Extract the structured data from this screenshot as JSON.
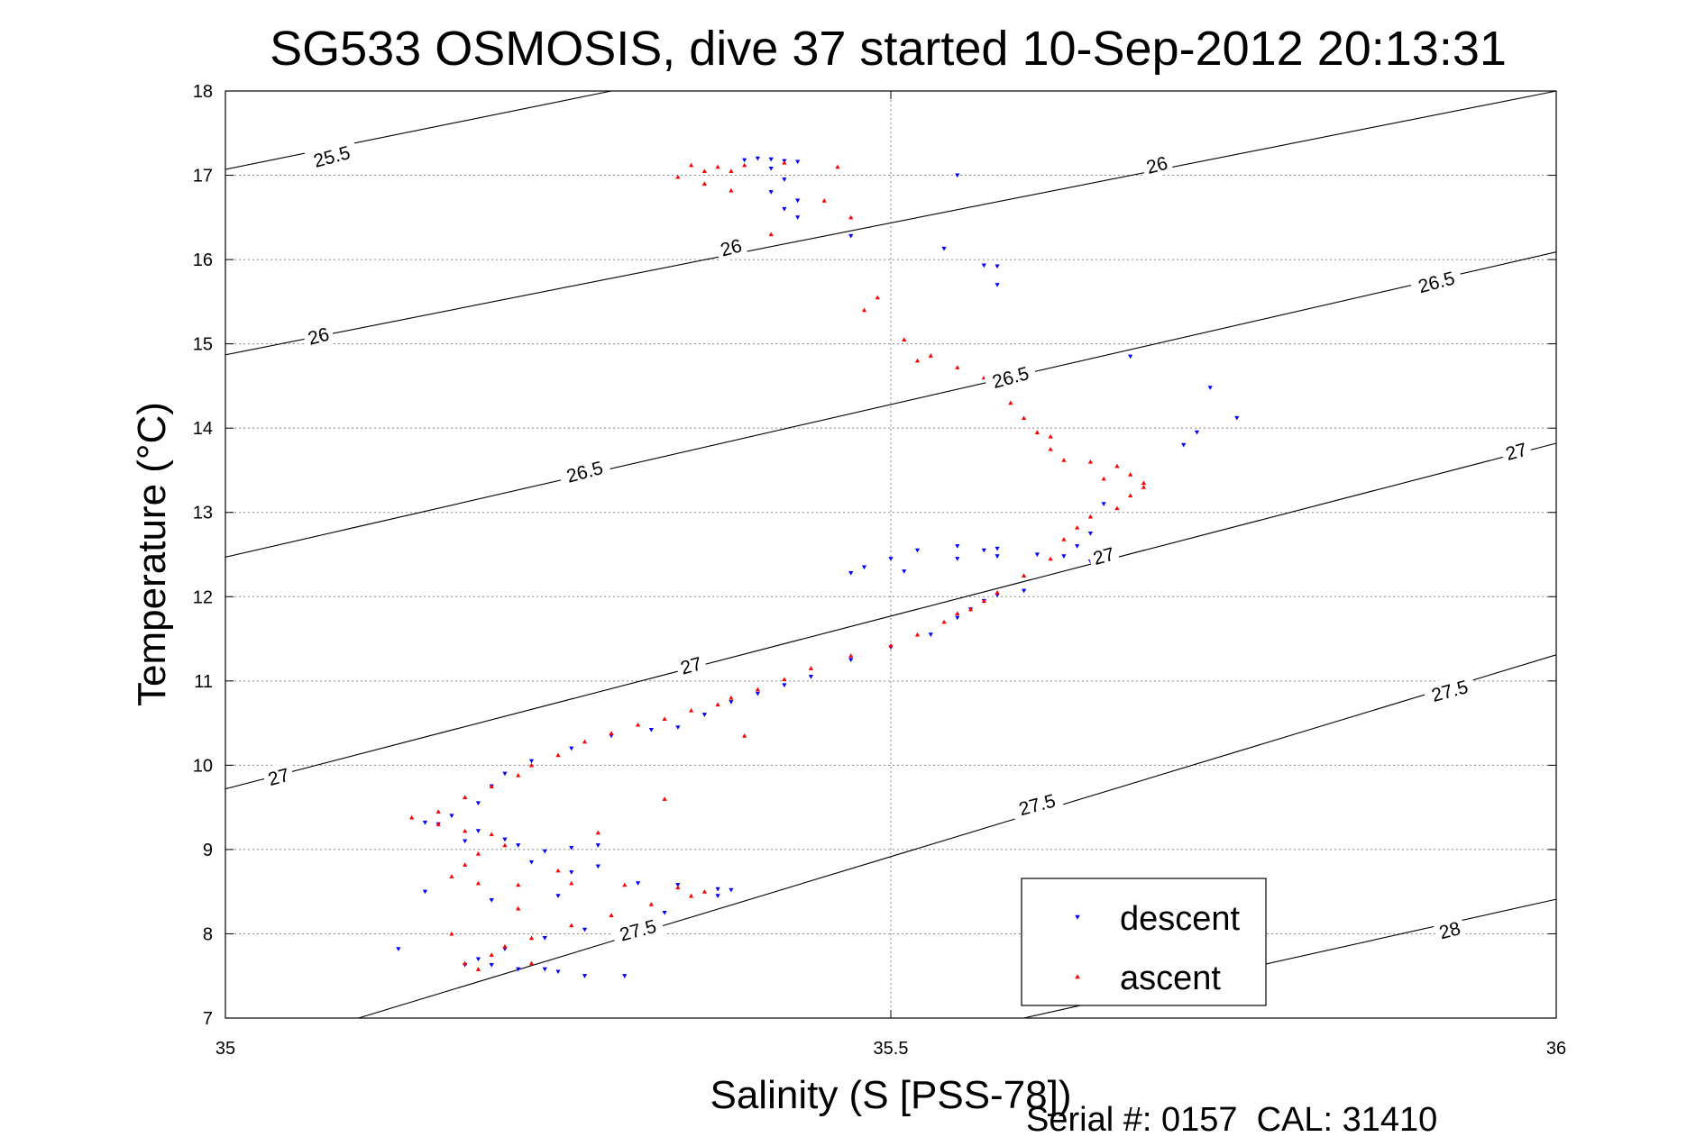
{
  "chart_data": {
    "type": "scatter",
    "title": "SG533 OSMOSIS, dive 37 started 10-Sep-2012 20:13:31",
    "xlabel": "Salinity (S [PSS-78])",
    "ylabel": "Temperature (°C)",
    "xlim": [
      35,
      36
    ],
    "ylim": [
      7,
      18
    ],
    "x_ticks": [
      "35",
      "35.5",
      "36"
    ],
    "y_ticks": [
      "7",
      "8",
      "9",
      "10",
      "11",
      "12",
      "13",
      "14",
      "15",
      "16",
      "17",
      "18"
    ],
    "grid": true,
    "legend_position": "bottom-right",
    "footer": "Serial #: 0157  CAL: 31410",
    "colors": {
      "descent": "#0000ff",
      "ascent": "#ff0000",
      "contour": "#000000"
    },
    "contours": [
      {
        "level": 25.5,
        "label": "25.5",
        "points": [
          [
            35.0,
            17.07
          ],
          [
            35.29,
            18.0
          ]
        ]
      },
      {
        "level": 26,
        "label": "26",
        "points": [
          [
            35.0,
            14.87
          ],
          [
            36.0,
            18.0
          ]
        ]
      },
      {
        "level": 26.5,
        "label": "26.5",
        "points": [
          [
            35.0,
            12.47
          ],
          [
            36.0,
            16.09
          ]
        ]
      },
      {
        "level": 27,
        "label": "27",
        "points": [
          [
            35.0,
            9.72
          ],
          [
            36.0,
            13.82
          ]
        ]
      },
      {
        "level": 27.5,
        "label": "27.5",
        "points": [
          [
            35.1,
            7.0
          ],
          [
            36.0,
            11.31
          ]
        ]
      },
      {
        "level": 28,
        "label": "28",
        "points": [
          [
            35.6,
            7.0
          ],
          [
            36.0,
            8.41
          ]
        ]
      }
    ],
    "contour_labels": [
      {
        "text": "25.5",
        "x": 35.08,
        "y": 17.22
      },
      {
        "text": "26",
        "x": 35.38,
        "y": 16.14
      },
      {
        "text": "26",
        "x": 35.7,
        "y": 17.12
      },
      {
        "text": "26",
        "x": 35.07,
        "y": 15.09
      },
      {
        "text": "26.5",
        "x": 35.27,
        "y": 13.48
      },
      {
        "text": "26.5",
        "x": 35.59,
        "y": 14.6
      },
      {
        "text": "26.5",
        "x": 35.91,
        "y": 15.73
      },
      {
        "text": "27",
        "x": 35.04,
        "y": 9.86
      },
      {
        "text": "27",
        "x": 35.35,
        "y": 11.18
      },
      {
        "text": "27",
        "x": 35.66,
        "y": 12.48
      },
      {
        "text": "27",
        "x": 35.97,
        "y": 13.72
      },
      {
        "text": "27.5",
        "x": 35.31,
        "y": 8.04
      },
      {
        "text": "27.5",
        "x": 35.61,
        "y": 9.53
      },
      {
        "text": "27.5",
        "x": 35.92,
        "y": 10.88
      },
      {
        "text": "28",
        "x": 35.92,
        "y": 8.04
      }
    ],
    "series": [
      {
        "name": "descent",
        "marker": "triangle-down",
        "points": [
          [
            35.39,
            17.18
          ],
          [
            35.4,
            17.2
          ],
          [
            35.41,
            17.19
          ],
          [
            35.42,
            17.17
          ],
          [
            35.43,
            17.16
          ],
          [
            35.41,
            17.08
          ],
          [
            35.42,
            16.95
          ],
          [
            35.41,
            16.8
          ],
          [
            35.43,
            16.7
          ],
          [
            35.42,
            16.6
          ],
          [
            35.43,
            16.5
          ],
          [
            35.47,
            16.28
          ],
          [
            35.55,
            17.0
          ],
          [
            35.54,
            16.13
          ],
          [
            35.57,
            15.93
          ],
          [
            35.58,
            15.92
          ],
          [
            35.58,
            15.7
          ],
          [
            35.68,
            14.85
          ],
          [
            35.74,
            14.48
          ],
          [
            35.76,
            14.12
          ],
          [
            35.73,
            13.95
          ],
          [
            35.72,
            13.8
          ],
          [
            35.66,
            13.1
          ],
          [
            35.65,
            12.75
          ],
          [
            35.64,
            12.6
          ],
          [
            35.58,
            12.57
          ],
          [
            35.57,
            12.55
          ],
          [
            35.55,
            12.6
          ],
          [
            35.52,
            12.55
          ],
          [
            35.5,
            12.45
          ],
          [
            35.48,
            12.35
          ],
          [
            35.47,
            12.28
          ],
          [
            35.51,
            12.3
          ],
          [
            35.55,
            12.45
          ],
          [
            35.58,
            12.48
          ],
          [
            35.61,
            12.5
          ],
          [
            35.63,
            12.48
          ],
          [
            35.65,
            12.42
          ],
          [
            35.66,
            12.38
          ],
          [
            35.6,
            12.07
          ],
          [
            35.58,
            12.02
          ],
          [
            35.57,
            11.95
          ],
          [
            35.56,
            11.85
          ],
          [
            35.55,
            11.75
          ],
          [
            35.53,
            11.55
          ],
          [
            35.5,
            11.4
          ],
          [
            35.47,
            11.25
          ],
          [
            35.44,
            11.05
          ],
          [
            35.42,
            10.95
          ],
          [
            35.4,
            10.85
          ],
          [
            35.38,
            10.75
          ],
          [
            35.36,
            10.6
          ],
          [
            35.34,
            10.45
          ],
          [
            35.32,
            10.42
          ],
          [
            35.29,
            10.35
          ],
          [
            35.26,
            10.2
          ],
          [
            35.23,
            10.05
          ],
          [
            35.21,
            9.9
          ],
          [
            35.2,
            9.75
          ],
          [
            35.19,
            9.55
          ],
          [
            35.17,
            9.4
          ],
          [
            35.15,
            9.32
          ],
          [
            35.16,
            9.3
          ],
          [
            35.19,
            9.22
          ],
          [
            35.21,
            9.12
          ],
          [
            35.22,
            9.05
          ],
          [
            35.24,
            8.98
          ],
          [
            35.26,
            9.02
          ],
          [
            35.28,
            9.05
          ],
          [
            35.23,
            8.85
          ],
          [
            35.26,
            8.73
          ],
          [
            35.31,
            8.6
          ],
          [
            35.34,
            8.58
          ],
          [
            35.37,
            8.53
          ],
          [
            35.38,
            8.52
          ],
          [
            35.37,
            8.45
          ],
          [
            35.33,
            8.25
          ],
          [
            35.31,
            8.12
          ],
          [
            35.27,
            8.05
          ],
          [
            35.24,
            7.95
          ],
          [
            35.21,
            7.82
          ],
          [
            35.19,
            7.7
          ],
          [
            35.18,
            7.63
          ],
          [
            35.22,
            7.58
          ],
          [
            35.24,
            7.58
          ],
          [
            35.13,
            7.82
          ],
          [
            35.2,
            7.63
          ],
          [
            35.25,
            7.55
          ],
          [
            35.3,
            7.5
          ],
          [
            35.27,
            7.5
          ],
          [
            35.15,
            8.5
          ],
          [
            35.2,
            8.4
          ],
          [
            35.25,
            8.45
          ],
          [
            35.28,
            8.8
          ],
          [
            35.18,
            9.1
          ]
        ]
      },
      {
        "name": "ascent",
        "marker": "triangle-up",
        "points": [
          [
            35.35,
            17.12
          ],
          [
            35.37,
            17.1
          ],
          [
            35.38,
            17.05
          ],
          [
            35.36,
            17.05
          ],
          [
            35.39,
            17.12
          ],
          [
            35.42,
            17.15
          ],
          [
            35.46,
            17.1
          ],
          [
            35.34,
            16.98
          ],
          [
            35.36,
            16.9
          ],
          [
            35.38,
            16.82
          ],
          [
            35.45,
            16.7
          ],
          [
            35.47,
            16.5
          ],
          [
            35.41,
            16.3
          ],
          [
            35.48,
            15.4
          ],
          [
            35.49,
            15.55
          ],
          [
            35.51,
            15.05
          ],
          [
            35.52,
            14.8
          ],
          [
            35.53,
            14.86
          ],
          [
            35.55,
            14.72
          ],
          [
            35.57,
            14.6
          ],
          [
            35.58,
            14.48
          ],
          [
            35.59,
            14.3
          ],
          [
            35.6,
            14.12
          ],
          [
            35.61,
            13.95
          ],
          [
            35.62,
            13.75
          ],
          [
            35.63,
            13.62
          ],
          [
            35.65,
            13.6
          ],
          [
            35.67,
            13.55
          ],
          [
            35.68,
            13.45
          ],
          [
            35.69,
            13.35
          ],
          [
            35.68,
            13.2
          ],
          [
            35.67,
            13.05
          ],
          [
            35.65,
            12.95
          ],
          [
            35.64,
            12.82
          ],
          [
            35.63,
            12.68
          ],
          [
            35.62,
            12.45
          ],
          [
            35.6,
            12.25
          ],
          [
            35.58,
            12.05
          ],
          [
            35.57,
            11.95
          ],
          [
            35.56,
            11.85
          ],
          [
            35.55,
            11.8
          ],
          [
            35.54,
            11.7
          ],
          [
            35.52,
            11.55
          ],
          [
            35.5,
            11.42
          ],
          [
            35.47,
            11.3
          ],
          [
            35.44,
            11.15
          ],
          [
            35.42,
            11.02
          ],
          [
            35.4,
            10.9
          ],
          [
            35.38,
            10.8
          ],
          [
            35.37,
            10.72
          ],
          [
            35.35,
            10.65
          ],
          [
            35.33,
            10.55
          ],
          [
            35.31,
            10.48
          ],
          [
            35.29,
            10.38
          ],
          [
            35.27,
            10.28
          ],
          [
            35.25,
            10.12
          ],
          [
            35.23,
            10.0
          ],
          [
            35.22,
            9.88
          ],
          [
            35.2,
            9.75
          ],
          [
            35.18,
            9.62
          ],
          [
            35.16,
            9.45
          ],
          [
            35.14,
            9.38
          ],
          [
            35.16,
            9.3
          ],
          [
            35.18,
            9.22
          ],
          [
            35.2,
            9.18
          ],
          [
            35.21,
            9.05
          ],
          [
            35.19,
            8.95
          ],
          [
            35.18,
            8.82
          ],
          [
            35.17,
            8.68
          ],
          [
            35.19,
            8.6
          ],
          [
            35.22,
            8.58
          ],
          [
            35.26,
            8.6
          ],
          [
            35.3,
            8.58
          ],
          [
            35.34,
            8.55
          ],
          [
            35.36,
            8.5
          ],
          [
            35.35,
            8.45
          ],
          [
            35.32,
            8.35
          ],
          [
            35.29,
            8.22
          ],
          [
            35.26,
            8.1
          ],
          [
            35.23,
            7.95
          ],
          [
            35.21,
            7.85
          ],
          [
            35.2,
            7.75
          ],
          [
            35.18,
            7.65
          ],
          [
            35.19,
            7.58
          ],
          [
            35.23,
            7.65
          ],
          [
            35.17,
            8.0
          ],
          [
            35.22,
            8.3
          ],
          [
            35.25,
            8.75
          ],
          [
            35.28,
            9.2
          ],
          [
            35.33,
            9.6
          ],
          [
            35.39,
            10.35
          ],
          [
            35.62,
            13.9
          ],
          [
            35.66,
            13.4
          ],
          [
            35.69,
            13.3
          ]
        ]
      }
    ]
  }
}
